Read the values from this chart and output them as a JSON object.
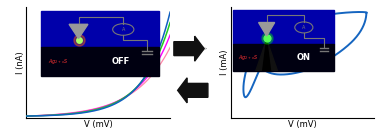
{
  "fig_width": 3.78,
  "fig_height": 1.39,
  "dpi": 100,
  "left_ylabel": "I (nA)",
  "left_xlabel": "V (mV)",
  "right_ylabel": "I (mA)",
  "right_xlabel": "V (mV)",
  "line_color_blue": "#1060C0",
  "line_color_green": "#22CC22",
  "line_color_magenta": "#FF00FF",
  "line_color_pink": "#FF88AA",
  "arrow_color": "#111111",
  "hysteresis_color": "#1565C0",
  "bg_color": "#ffffff",
  "inset_bg_top": "#0000BB",
  "inset_bg_bot": "#000022",
  "off_text_color": "#ffffff",
  "ag_text_color": "#FF3333",
  "circuit_color": "#777777"
}
